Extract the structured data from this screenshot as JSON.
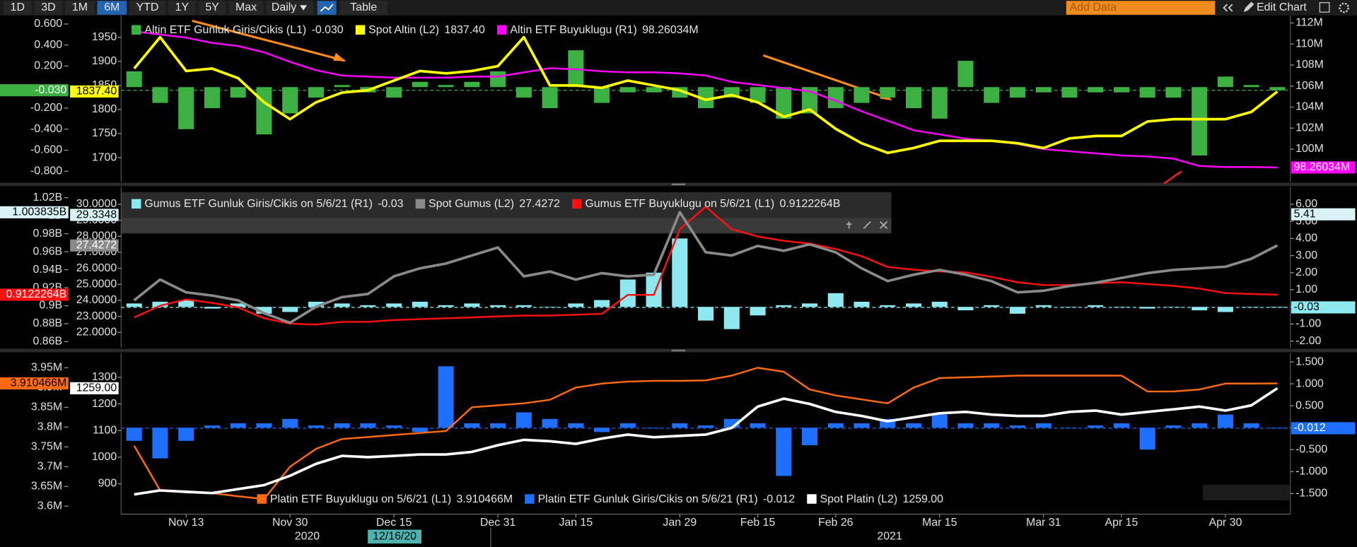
{
  "toolbar": {
    "ranges": [
      "1D",
      "3D",
      "1M",
      "6M",
      "YTD",
      "1Y",
      "5Y",
      "Max"
    ],
    "selected": "6M",
    "frequency": "Daily",
    "table": "Table",
    "add_data": "Add Data",
    "edit_chart": "Edit Chart"
  },
  "chart_data": [
    {
      "type": "combo",
      "legend": "top-left",
      "ylim": [
        -0.9,
        0.68
      ],
      "yticks": [
        {
          "value": 0.6,
          "label": "0.600"
        },
        {
          "value": 0.4,
          "label": "0.400"
        },
        {
          "value": 0.2,
          "label": "0.200"
        },
        {
          "value": -0.2,
          "label": "-0.200"
        },
        {
          "value": -0.4,
          "label": "-0.400"
        },
        {
          "value": -0.6,
          "label": "-0.600"
        },
        {
          "value": -0.8,
          "label": "-0.800"
        }
      ],
      "y3lim": [
        1650,
        1995
      ],
      "y3ticks": [
        1700,
        1750,
        1800,
        1850,
        1900,
        1950
      ],
      "y2lim": [
        96.9,
        112.7
      ],
      "y2ticks": [
        {
          "value": 100,
          "label": "100M"
        },
        {
          "value": 102,
          "label": "102M"
        },
        {
          "value": 104,
          "label": "104M"
        },
        {
          "value": 106,
          "label": "106M"
        },
        {
          "value": 108,
          "label": "108M"
        },
        {
          "value": 110,
          "label": "110M"
        },
        {
          "value": 112,
          "label": "112M"
        }
      ],
      "series": [
        {
          "name": "Altin ETF Gunluk Giris/Cikis (L1)",
          "type": "bar",
          "color": "#3cb043",
          "last_label": "-0.030",
          "values": [
            0.15,
            -0.15,
            -0.4,
            -0.2,
            -0.1,
            -0.45,
            -0.25,
            -0.1,
            0.02,
            -0.05,
            -0.1,
            0.05,
            0.02,
            0.05,
            0.15,
            -0.1,
            -0.2,
            0.35,
            -0.15,
            -0.05,
            -0.05,
            -0.1,
            -0.2,
            -0.1,
            -0.15,
            -0.3,
            -0.25,
            -0.2,
            -0.15,
            -0.1,
            -0.2,
            -0.3,
            0.25,
            -0.15,
            -0.1,
            -0.05,
            -0.1,
            -0.05,
            -0.05,
            -0.1,
            -0.1,
            -0.65,
            0.1,
            0.02,
            -0.03
          ]
        },
        {
          "name": "Spot Altin (L2)",
          "type": "price",
          "axis": "y3",
          "color": "#ffff00",
          "last_label": "1837.40",
          "values": [
            1885,
            1950,
            1880,
            1885,
            1865,
            1815,
            1780,
            1815,
            1835,
            1840,
            1860,
            1880,
            1875,
            1880,
            1890,
            1950,
            1850,
            1850,
            1845,
            1860,
            1850,
            1840,
            1820,
            1830,
            1815,
            1785,
            1800,
            1760,
            1730,
            1710,
            1720,
            1735,
            1735,
            1735,
            1730,
            1720,
            1740,
            1745,
            1745,
            1775,
            1780,
            1780,
            1780,
            1795,
            1837.4
          ]
        },
        {
          "name": "Altin ETF Buyuklugu (R1)",
          "type": "line",
          "axis": "y2",
          "color": "#ff00ff",
          "last_label": "98.26034M",
          "values": [
            111.2,
            110.9,
            110.6,
            110.1,
            109.8,
            109.2,
            108.3,
            107.5,
            107.0,
            106.9,
            106.8,
            106.8,
            106.8,
            106.9,
            106.9,
            107.3,
            107.7,
            107.6,
            107.4,
            107.3,
            107.3,
            107.2,
            107.0,
            106.4,
            106.1,
            105.8,
            105.5,
            104.6,
            103.6,
            102.7,
            101.8,
            101.4,
            101.0,
            100.8,
            100.5,
            100.0,
            99.8,
            99.6,
            99.4,
            99.3,
            99.1,
            98.4,
            98.3,
            98.3,
            98.26034
          ]
        }
      ]
    },
    {
      "type": "combo",
      "legend": "top-left",
      "ylim": [
        0.853,
        1.032
      ],
      "yticks": [
        {
          "value": 0.86,
          "label": "0.86B"
        },
        {
          "value": 0.88,
          "label": "0.88B"
        },
        {
          "value": 0.9,
          "label": "0.9B"
        },
        {
          "value": 0.92,
          "label": "0.92B"
        },
        {
          "value": 0.94,
          "label": "0.94B"
        },
        {
          "value": 0.96,
          "label": "0.96B"
        },
        {
          "value": 0.98,
          "label": "0.98B"
        },
        {
          "value": 1,
          "label": "1B"
        },
        {
          "value": 1.02,
          "label": "1.02B"
        }
      ],
      "y3lim": [
        21.03,
        31.08
      ],
      "y3ticks": [
        {
          "value": 22,
          "label": "22.0000"
        },
        {
          "value": 23,
          "label": "23.0000"
        },
        {
          "value": 24,
          "label": "24.0000"
        },
        {
          "value": 25,
          "label": "25.0000"
        },
        {
          "value": 26,
          "label": "26.0000"
        },
        {
          "value": 27,
          "label": "27.0000"
        },
        {
          "value": 28,
          "label": "28.0000"
        },
        {
          "value": 29,
          "label": "29.0000"
        },
        {
          "value": 30,
          "label": "30.0000"
        }
      ],
      "y2lim": [
        -2.4,
        7.01
      ],
      "y2ticks": [
        {
          "value": -2,
          "label": "-2.00"
        },
        {
          "value": -1,
          "label": "-1.00"
        },
        {
          "value": 0,
          "label": "0.00"
        },
        {
          "value": 1,
          "label": "1.00"
        },
        {
          "value": 2,
          "label": "2.00"
        },
        {
          "value": 3,
          "label": "3.00"
        },
        {
          "value": 4,
          "label": "4.00"
        },
        {
          "value": 5,
          "label": "5.00"
        },
        {
          "value": 6,
          "label": "6.00"
        }
      ],
      "cursor": [
        {
          "axis": "y",
          "value": 1.003835,
          "label": "1.003835B"
        },
        {
          "axis": "y3",
          "value": 29.3348,
          "label": "29.3348"
        },
        {
          "axis": "y2",
          "value": 5.41,
          "label": "5.41"
        }
      ],
      "series": [
        {
          "name": "Gumus ETF Gunluk Giris/Cikis on 5/6/21 (R1)",
          "type": "bar",
          "axis": "y2",
          "color": "#8ee8f0",
          "last_label": "-0.03",
          "values": [
            0.2,
            0.3,
            0.4,
            -0.1,
            0.2,
            -0.4,
            -0.3,
            0.3,
            0.2,
            0.1,
            0.2,
            0.3,
            0.1,
            0.2,
            0.1,
            0.1,
            0.0,
            0.2,
            0.4,
            1.6,
            2.0,
            4.0,
            -0.8,
            -1.3,
            -0.5,
            0.1,
            0.2,
            0.8,
            0.3,
            0.1,
            0.2,
            0.3,
            -0.2,
            0.1,
            -0.4,
            0.1,
            0.0,
            0.1,
            0.0,
            -0.1,
            0.0,
            -0.2,
            -0.3,
            0.0,
            -0.03
          ]
        },
        {
          "name": "Spot Gumus (L2)",
          "type": "price",
          "axis": "y3",
          "color": "#8a8a8a",
          "last_label": "27.4272",
          "values": [
            24.0,
            25.3,
            24.5,
            24.3,
            24.0,
            23.2,
            22.6,
            23.6,
            24.2,
            24.4,
            25.5,
            26.0,
            26.3,
            26.8,
            27.3,
            25.5,
            25.8,
            25.3,
            25.7,
            25.5,
            25.6,
            29.5,
            27.0,
            26.8,
            27.4,
            27.1,
            27.5,
            27.0,
            26.0,
            25.2,
            25.6,
            25.9,
            25.6,
            25.2,
            24.5,
            24.6,
            24.9,
            25.1,
            25.4,
            25.7,
            25.9,
            26.0,
            26.1,
            26.6,
            27.4272
          ]
        },
        {
          "name": "Gumus ETF Buyuklugu on 5/6/21 (L1)",
          "type": "line",
          "color": "#ff1010",
          "last_label": "0.9122264B",
          "values": [
            0.887,
            0.9,
            0.907,
            0.903,
            0.898,
            0.886,
            0.88,
            0.879,
            0.882,
            0.882,
            0.884,
            0.885,
            0.886,
            0.887,
            0.888,
            0.889,
            0.889,
            0.89,
            0.891,
            0.912,
            0.912,
            0.985,
            1.01,
            0.985,
            0.977,
            0.972,
            0.969,
            0.963,
            0.955,
            0.943,
            0.94,
            0.938,
            0.937,
            0.932,
            0.926,
            0.923,
            0.923,
            0.925,
            0.926,
            0.924,
            0.922,
            0.919,
            0.914,
            0.913,
            0.9122264
          ]
        }
      ]
    },
    {
      "type": "combo",
      "legend": "bottom-left",
      "categories": [
        null,
        null,
        "Nov 13",
        null,
        null,
        null,
        "Nov 30",
        null,
        null,
        null,
        "Dec 15",
        null,
        null,
        null,
        "Dec 31",
        null,
        null,
        "Jan 15",
        null,
        null,
        null,
        "Jan 29",
        null,
        null,
        "Feb 15",
        null,
        null,
        "Feb 26",
        null,
        null,
        null,
        "Mar 15",
        null,
        null,
        null,
        "Mar 31",
        null,
        null,
        "Apr 15",
        null,
        null,
        null,
        "Apr 30",
        null,
        null
      ],
      "year_labels": [
        "2020",
        "2021"
      ],
      "cursor_label": "12/16/20",
      "ylim": [
        3.58,
        3.987
      ],
      "yticks": [
        {
          "value": 3.6,
          "label": "3.6M"
        },
        {
          "value": 3.65,
          "label": "3.65M"
        },
        {
          "value": 3.7,
          "label": "3.7M"
        },
        {
          "value": 3.75,
          "label": "3.75M"
        },
        {
          "value": 3.8,
          "label": "3.8M"
        },
        {
          "value": 3.85,
          "label": "3.85M"
        },
        {
          "value": 3.9,
          "label": "3.9M"
        },
        {
          "value": 3.95,
          "label": "3.95M"
        }
      ],
      "y3lim": [
        786,
        1391
      ],
      "y3ticks": [
        900,
        1000,
        1100,
        1200,
        1300
      ],
      "y2lim": [
        -1.97,
        1.7
      ],
      "y2ticks": [
        {
          "value": -1.5,
          "label": "-1.500"
        },
        {
          "value": -1,
          "label": "-1.000"
        },
        {
          "value": -0.5,
          "label": "-0.500"
        },
        {
          "value": 0,
          "label": "0.000"
        },
        {
          "value": 0.5,
          "label": "0.500"
        },
        {
          "value": 1,
          "label": "1.000"
        },
        {
          "value": 1.5,
          "label": "1.500"
        }
      ],
      "series": [
        {
          "name": "Platin ETF Buyuklugu on 5/6/21 (L1)",
          "type": "line",
          "color": "#ff6a13",
          "last_label": "3.910466M",
          "values": [
            3.753,
            3.64,
            3.635,
            3.633,
            3.625,
            3.618,
            3.7,
            3.745,
            3.77,
            3.775,
            3.78,
            3.785,
            3.79,
            3.85,
            3.855,
            3.86,
            3.869,
            3.9,
            3.91,
            3.915,
            3.917,
            3.917,
            3.918,
            3.93,
            3.95,
            3.94,
            3.895,
            3.88,
            3.87,
            3.86,
            3.9,
            3.924,
            3.926,
            3.928,
            3.93,
            3.93,
            3.93,
            3.93,
            3.93,
            3.89,
            3.89,
            3.895,
            3.91,
            3.91,
            3.910466
          ]
        },
        {
          "name": "Platin ETF Gunluk Giris/Cikis on 5/6/21 (R1)",
          "type": "bar",
          "axis": "y2",
          "color": "#1f6fff",
          "last_label": "-0.012",
          "values": [
            -0.3,
            -0.7,
            -0.3,
            0.05,
            0.1,
            0.1,
            0.2,
            0.05,
            0.1,
            0.1,
            0.05,
            -0.1,
            1.4,
            0.1,
            0.1,
            0.35,
            0.2,
            0.1,
            -0.1,
            0.1,
            0.0,
            0.1,
            0.05,
            0.2,
            0.1,
            -1.1,
            -0.4,
            0.1,
            0.1,
            0.2,
            0.1,
            0.3,
            0.1,
            0.1,
            0.05,
            0.1,
            0.0,
            0.05,
            0.1,
            -0.5,
            0.05,
            0.1,
            0.3,
            0.1,
            -0.012
          ]
        },
        {
          "name": "Spot Platin (L2)",
          "type": "price",
          "axis": "y3",
          "color": "#ffffff",
          "last_label": "1259.00",
          "values": [
            860,
            875,
            870,
            865,
            880,
            895,
            930,
            975,
            1005,
            1000,
            1005,
            1010,
            1010,
            1020,
            1045,
            1065,
            1060,
            1050,
            1070,
            1085,
            1075,
            1080,
            1085,
            1110,
            1190,
            1220,
            1200,
            1170,
            1155,
            1135,
            1150,
            1165,
            1170,
            1160,
            1155,
            1155,
            1170,
            1175,
            1160,
            1170,
            1180,
            1190,
            1175,
            1195,
            1259
          ]
        }
      ]
    }
  ]
}
